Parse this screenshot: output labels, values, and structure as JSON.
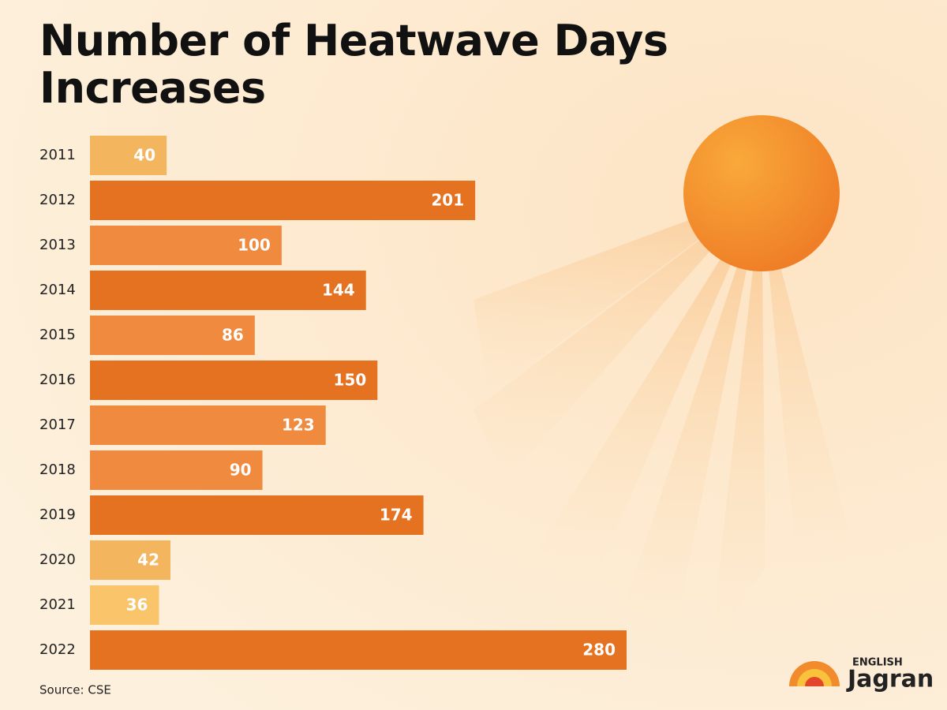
{
  "chart_data": {
    "type": "bar",
    "orientation": "horizontal",
    "title": "Number of Heatwave Days Increases",
    "categories": [
      "2011",
      "2012",
      "2013",
      "2014",
      "2015",
      "2016",
      "2017",
      "2018",
      "2019",
      "2020",
      "2021",
      "2022"
    ],
    "values": [
      40,
      201,
      100,
      144,
      86,
      150,
      123,
      90,
      174,
      42,
      36,
      280
    ],
    "colors": [
      "#f4b55f",
      "#e57220",
      "#f08a3f",
      "#e57220",
      "#f08a3f",
      "#e57220",
      "#f08a3f",
      "#f08a3f",
      "#e57220",
      "#f4b55f",
      "#f9c46a",
      "#e57220"
    ],
    "source": "Source: CSE"
  },
  "branding": {
    "top": "ENGLISH",
    "name": "Jagran"
  }
}
